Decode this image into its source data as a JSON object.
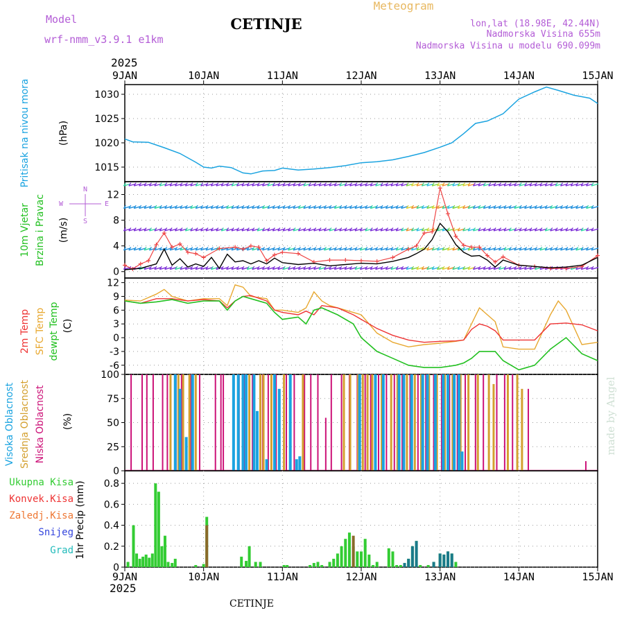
{
  "header": {
    "model_label": "Model",
    "model_name": "wrf-nmm_v3.9.1 e1km",
    "station": "CETINJE",
    "meteogram": "Meteogram",
    "lonlat": "lon,lat (18.98E, 42.44N)",
    "elevation": "Nadmorska Visina 655m",
    "model_elevation": "Nadmorska Visina u modelu 690.099m",
    "year_top": "2025",
    "year_bottom": "2025",
    "footer_station": "CETINJE",
    "credit": "made by Angel"
  },
  "colors": {
    "pressure": "#1aa3e0",
    "wind_label": "#22c020",
    "temp2m": "#ee3333",
    "sfc": "#e8a830",
    "dew": "#22c020",
    "cloud_high": "#1aa3e0",
    "cloud_mid": "#d4a030",
    "cloud_low": "#cc1177",
    "precip_total": "#33cc33",
    "precip_conv": "#ee3333",
    "precip_frozen": "#ee7733",
    "precip_snow": "#3344dd",
    "precip_hail": "#22bbbb",
    "header_purple": "#b35cd6",
    "meteogram_orange": "#e8b860"
  },
  "chart_data": [
    {
      "type": "line",
      "name": "pressure",
      "label_left": "Pritisak na nivou mora",
      "unit": "(hPa)",
      "x_ticks": [
        "9JAN",
        "10JAN",
        "11JAN",
        "12JAN",
        "13JAN",
        "14JAN",
        "15JAN"
      ],
      "ylim": [
        1012,
        1032
      ],
      "y_ticks": [
        1015,
        1020,
        1025,
        1030
      ],
      "grid": true,
      "series": [
        {
          "x": [
            0,
            0.1,
            0.3,
            0.5,
            0.7,
            0.9,
            1.0,
            1.1,
            1.2,
            1.35,
            1.5,
            1.6,
            1.75,
            1.9,
            2.0,
            2.2,
            2.4,
            2.6,
            2.8,
            3.0,
            3.2,
            3.4,
            3.6,
            3.8,
            4.0,
            4.15,
            4.3,
            4.45,
            4.6,
            4.8,
            5.0,
            5.2,
            5.35,
            5.5,
            5.7,
            5.9,
            6.0
          ],
          "values": [
            1020.8,
            1020.2,
            1020.1,
            1019.0,
            1017.8,
            1016.0,
            1015.0,
            1014.8,
            1015.2,
            1014.9,
            1013.8,
            1013.6,
            1014.2,
            1014.3,
            1014.8,
            1014.4,
            1014.6,
            1014.9,
            1015.3,
            1015.9,
            1016.1,
            1016.5,
            1017.2,
            1018.0,
            1019.1,
            1020.0,
            1021.9,
            1024.0,
            1024.5,
            1026.0,
            1029.0,
            1030.5,
            1031.5,
            1030.8,
            1029.8,
            1029.2,
            1028.1
          ]
        }
      ]
    },
    {
      "type": "line",
      "name": "wind",
      "label_left": "10m Vjetar",
      "label_left2": "Brzina i Pravac",
      "unit": "(m/s)",
      "compass": [
        "N",
        "W",
        "E",
        "S"
      ],
      "ylim": [
        -1,
        14
      ],
      "y_ticks": [
        0,
        4,
        8,
        12
      ],
      "grid": true,
      "series": [
        {
          "name": "speed",
          "x": [
            0,
            0.2,
            0.4,
            0.5,
            0.6,
            0.7,
            0.8,
            0.9,
            1.0,
            1.1,
            1.2,
            1.3,
            1.4,
            1.5,
            1.6,
            1.7,
            1.8,
            1.9,
            2.0,
            2.2,
            2.4,
            2.6,
            2.8,
            3.0,
            3.2,
            3.4,
            3.6,
            3.7,
            3.8,
            3.9,
            4.0,
            4.1,
            4.2,
            4.3,
            4.4,
            4.5,
            4.6,
            4.7,
            4.8,
            5.0,
            5.2,
            5.4,
            5.6,
            5.8,
            6.0
          ],
          "values": [
            0.3,
            0.5,
            1.2,
            3.5,
            1.0,
            2.0,
            0.7,
            1.2,
            0.8,
            2.2,
            0.5,
            2.7,
            1.5,
            1.7,
            1.2,
            1.7,
            1.2,
            2.1,
            1.4,
            1.1,
            1.3,
            0.9,
            1.1,
            1.3,
            1.2,
            1.6,
            2.2,
            2.8,
            3.5,
            5.0,
            7.5,
            6.2,
            4.2,
            3.0,
            2.4,
            2.5,
            1.8,
            0.7,
            1.8,
            1.0,
            0.8,
            0.6,
            0.7,
            1.0,
            2.2
          ]
        },
        {
          "name": "gust",
          "x": [
            0,
            0.1,
            0.2,
            0.3,
            0.4,
            0.5,
            0.6,
            0.7,
            0.8,
            0.9,
            1.0,
            1.2,
            1.4,
            1.5,
            1.6,
            1.7,
            1.8,
            1.9,
            2.0,
            2.2,
            2.4,
            2.6,
            2.8,
            3.0,
            3.2,
            3.4,
            3.6,
            3.7,
            3.8,
            3.9,
            4.0,
            4.1,
            4.2,
            4.3,
            4.4,
            4.5,
            4.6,
            4.7,
            4.8,
            5.0,
            5.2,
            5.4,
            5.6,
            5.8,
            6.0
          ],
          "values": [
            1.0,
            0.4,
            1.2,
            1.7,
            4.2,
            6.0,
            3.8,
            4.3,
            3.0,
            2.8,
            2.2,
            3.6,
            3.8,
            3.5,
            4.0,
            3.8,
            1.7,
            2.6,
            3.0,
            2.8,
            1.5,
            1.8,
            1.8,
            1.7,
            1.6,
            2.2,
            3.5,
            4.0,
            6.0,
            6.2,
            13.0,
            9.0,
            5.5,
            4.1,
            3.8,
            3.8,
            2.5,
            1.5,
            2.3,
            1.0,
            0.8,
            0.5,
            0.5,
            0.8,
            2.5
          ]
        }
      ]
    },
    {
      "type": "line",
      "name": "temperature",
      "label_left": "2m Temp",
      "label_left2": "SFC Temp",
      "label_left3": "dewpt Temp",
      "unit": "(C)",
      "ylim": [
        -8,
        13
      ],
      "y_ticks": [
        -6,
        -3,
        0,
        3,
        6,
        9,
        12
      ],
      "grid": true,
      "series": [
        {
          "name": "2m Temp",
          "x": [
            0,
            0.2,
            0.4,
            0.6,
            0.8,
            1.0,
            1.2,
            1.3,
            1.4,
            1.5,
            1.6,
            1.8,
            1.9,
            2.0,
            2.2,
            2.3,
            2.4,
            2.5,
            2.7,
            2.9,
            3.0,
            3.2,
            3.4,
            3.6,
            3.8,
            4.0,
            4.2,
            4.3,
            4.4,
            4.5,
            4.6,
            4.7,
            4.8,
            5.0,
            5.2,
            5.4,
            5.6,
            5.8,
            6.0
          ],
          "values": [
            8.0,
            7.5,
            8.5,
            8.5,
            8.0,
            8.3,
            8.0,
            6.5,
            8.0,
            9.0,
            9.2,
            8.0,
            6.0,
            5.5,
            5.0,
            5.8,
            5.0,
            7.0,
            6.5,
            5.0,
            4.0,
            2.0,
            0.5,
            -0.5,
            -1.0,
            -0.8,
            -0.7,
            -0.5,
            1.8,
            3.0,
            2.5,
            1.5,
            -0.5,
            -0.5,
            -0.5,
            3.0,
            3.2,
            2.8,
            1.5
          ]
        },
        {
          "name": "SFC Temp",
          "x": [
            0,
            0.2,
            0.4,
            0.5,
            0.6,
            0.8,
            1.0,
            1.2,
            1.3,
            1.4,
            1.5,
            1.6,
            1.8,
            1.9,
            2.0,
            2.2,
            2.3,
            2.4,
            2.5,
            2.6,
            2.8,
            3.0,
            3.2,
            3.4,
            3.6,
            3.8,
            4.0,
            4.2,
            4.3,
            4.4,
            4.5,
            4.6,
            4.7,
            4.8,
            5.0,
            5.2,
            5.4,
            5.5,
            5.6,
            5.8,
            6.0
          ],
          "values": [
            8.2,
            8.0,
            9.5,
            10.5,
            9.0,
            8.0,
            8.5,
            8.5,
            7.0,
            11.5,
            11.0,
            9.0,
            8.5,
            6.0,
            6.0,
            5.5,
            6.5,
            10.0,
            8.0,
            7.0,
            6.0,
            5.0,
            1.0,
            -1.0,
            -2.0,
            -1.5,
            -1.2,
            -0.8,
            -0.5,
            3.0,
            6.5,
            5.0,
            3.5,
            -2.0,
            -2.5,
            -2.5,
            5.0,
            8.0,
            6.0,
            -1.5,
            -1.0
          ]
        },
        {
          "name": "dewpt Temp",
          "x": [
            0,
            0.2,
            0.4,
            0.6,
            0.8,
            1.0,
            1.2,
            1.3,
            1.4,
            1.5,
            1.6,
            1.8,
            1.9,
            2.0,
            2.2,
            2.3,
            2.4,
            2.5,
            2.7,
            2.9,
            3.0,
            3.2,
            3.4,
            3.6,
            3.8,
            4.0,
            4.2,
            4.3,
            4.4,
            4.5,
            4.6,
            4.7,
            4.8,
            5.0,
            5.2,
            5.4,
            5.6,
            5.8,
            6.0
          ],
          "values": [
            8.0,
            7.5,
            7.8,
            8.3,
            7.5,
            8.0,
            8.0,
            6.0,
            8.0,
            9.0,
            8.5,
            7.5,
            5.5,
            4.0,
            4.5,
            3.0,
            6.0,
            6.5,
            5.0,
            3.0,
            0.0,
            -3.0,
            -4.5,
            -6.0,
            -6.5,
            -6.5,
            -6.0,
            -5.5,
            -4.5,
            -3.0,
            -3.0,
            -3.0,
            -5.0,
            -7.0,
            -6.0,
            -2.5,
            0.0,
            -3.5,
            -5.0
          ]
        }
      ]
    },
    {
      "type": "bar",
      "name": "clouds",
      "label_left": "Visoka Oblacnost",
      "label_left2": "Srednja Oblacnost",
      "label_left3": "Niska Oblacnost",
      "unit": "(%)",
      "ylim": [
        0,
        100
      ],
      "y_ticks": [
        0,
        25,
        50,
        75,
        100
      ],
      "grid": true,
      "series": [
        {
          "name": "Niska Oblacnost",
          "x": [
            0.08,
            0.22,
            0.28,
            0.36,
            0.48,
            0.54,
            0.65,
            0.72,
            0.84,
            0.95,
            1.15,
            1.22,
            1.25,
            1.45,
            1.52,
            1.62,
            1.75,
            1.82,
            1.92,
            2.05,
            2.15,
            2.28,
            2.36,
            2.45,
            2.55,
            2.62,
            2.75,
            2.85,
            2.95,
            3.05,
            3.12,
            3.22,
            3.32,
            3.42,
            3.52,
            3.62,
            3.72,
            3.82,
            3.92,
            4.02,
            4.12,
            4.22,
            4.32,
            4.45,
            4.55,
            4.72,
            4.82,
            4.92,
            5.12,
            5.85
          ],
          "values": [
            100,
            100,
            100,
            100,
            100,
            100,
            100,
            100,
            100,
            100,
            100,
            100,
            100,
            100,
            100,
            100,
            100,
            100,
            100,
            100,
            100,
            100,
            100,
            100,
            55,
            100,
            100,
            100,
            100,
            100,
            100,
            100,
            100,
            100,
            100,
            100,
            100,
            100,
            100,
            100,
            100,
            100,
            100,
            100,
            100,
            100,
            100,
            100,
            85,
            10
          ]
        },
        {
          "name": "Srednja Oblacnost",
          "x": [
            0.58,
            0.68,
            0.74,
            0.82,
            0.9,
            1.58,
            1.72,
            1.76,
            1.86,
            2.02,
            2.26,
            2.78,
            2.86,
            2.96,
            3.02,
            3.08,
            3.14,
            3.26,
            3.38,
            3.46,
            3.58,
            3.68,
            3.76,
            3.86,
            3.96,
            4.06,
            4.16,
            4.26,
            4.36,
            4.48,
            4.62,
            4.68,
            4.86,
            4.98,
            5.04
          ],
          "values": [
            100,
            100,
            100,
            100,
            100,
            100,
            100,
            100,
            100,
            100,
            100,
            100,
            100,
            100,
            100,
            100,
            100,
            100,
            100,
            100,
            100,
            100,
            100,
            100,
            100,
            100,
            100,
            100,
            100,
            100,
            100,
            90,
            100,
            100,
            85
          ]
        },
        {
          "name": "Visoka Oblacnost",
          "x": [
            0.64,
            0.7,
            0.78,
            0.86,
            1.38,
            1.44,
            1.5,
            1.54,
            1.64,
            1.68,
            1.8,
            1.9,
            1.96,
            2.1,
            2.18,
            2.22,
            2.98,
            3.18,
            3.28,
            3.48,
            3.54,
            3.64,
            3.78,
            3.84,
            3.94,
            4.04,
            4.1,
            4.18,
            4.24,
            4.28
          ],
          "values": [
            100,
            85,
            35,
            100,
            100,
            100,
            100,
            100,
            100,
            62,
            12,
            100,
            85,
            100,
            12,
            15,
            100,
            100,
            100,
            100,
            100,
            100,
            100,
            100,
            100,
            100,
            100,
            100,
            100,
            20
          ]
        }
      ]
    },
    {
      "type": "bar",
      "name": "precip",
      "label_left": "1hr Precip (mm)",
      "legend": [
        "Ukupna Kisa",
        "Konvek.Kisa",
        "Zaledj.Kisa",
        "Snijeg",
        "Grad"
      ],
      "x_ticks": [
        "9JAN",
        "10JAN",
        "11JAN",
        "12JAN",
        "13JAN",
        "14JAN",
        "15JAN"
      ],
      "ylim": [
        0,
        0.92
      ],
      "y_ticks": [
        0,
        0.2,
        0.4,
        0.6,
        0.8
      ],
      "grid": true,
      "series": [
        {
          "name": "Ukupna Kisa",
          "x": [
            0.04,
            0.11,
            0.15,
            0.19,
            0.23,
            0.27,
            0.31,
            0.35,
            0.39,
            0.43,
            0.47,
            0.51,
            0.55,
            0.6,
            0.64,
            0.9,
            1.0,
            1.04,
            1.48,
            1.54,
            1.58,
            1.66,
            1.72,
            2.02,
            2.06,
            2.35,
            2.4,
            2.45,
            2.5,
            2.6,
            2.65,
            2.7,
            2.75,
            2.8,
            2.85,
            2.9,
            2.95,
            3.0,
            3.05,
            3.1,
            3.15,
            3.2,
            3.35,
            3.4,
            3.45,
            3.5,
            3.55,
            3.6,
            3.65,
            3.7,
            3.75,
            3.85,
            3.92,
            4.0,
            4.05,
            4.1,
            4.15,
            4.2
          ],
          "values": [
            0.05,
            0.4,
            0.13,
            0.08,
            0.1,
            0.12,
            0.09,
            0.13,
            0.8,
            0.72,
            0.2,
            0.3,
            0.05,
            0.04,
            0.08,
            0.02,
            0.03,
            0.48,
            0.1,
            0.06,
            0.2,
            0.05,
            0.05,
            0.02,
            0.02,
            0.02,
            0.04,
            0.05,
            0.02,
            0.05,
            0.08,
            0.13,
            0.2,
            0.27,
            0.33,
            0.2,
            0.15,
            0.15,
            0.27,
            0.12,
            0.02,
            0.05,
            0.18,
            0.15,
            0.02,
            0.02,
            0.04,
            0.08,
            0.2,
            0.25,
            0.02,
            0.02,
            0.05,
            0.13,
            0.12,
            0.15,
            0.13,
            0.05
          ]
        },
        {
          "name": "Konvek.Kisa",
          "x": [
            1.04,
            2.9
          ],
          "values": [
            0.4,
            0.3
          ]
        },
        {
          "name": "Snijeg",
          "x": [
            3.55,
            3.6,
            3.65,
            3.7,
            3.92,
            4.0,
            4.05,
            4.1,
            4.15
          ],
          "values": [
            0.04,
            0.08,
            0.2,
            0.25,
            0.05,
            0.13,
            0.12,
            0.15,
            0.13
          ]
        }
      ]
    }
  ]
}
